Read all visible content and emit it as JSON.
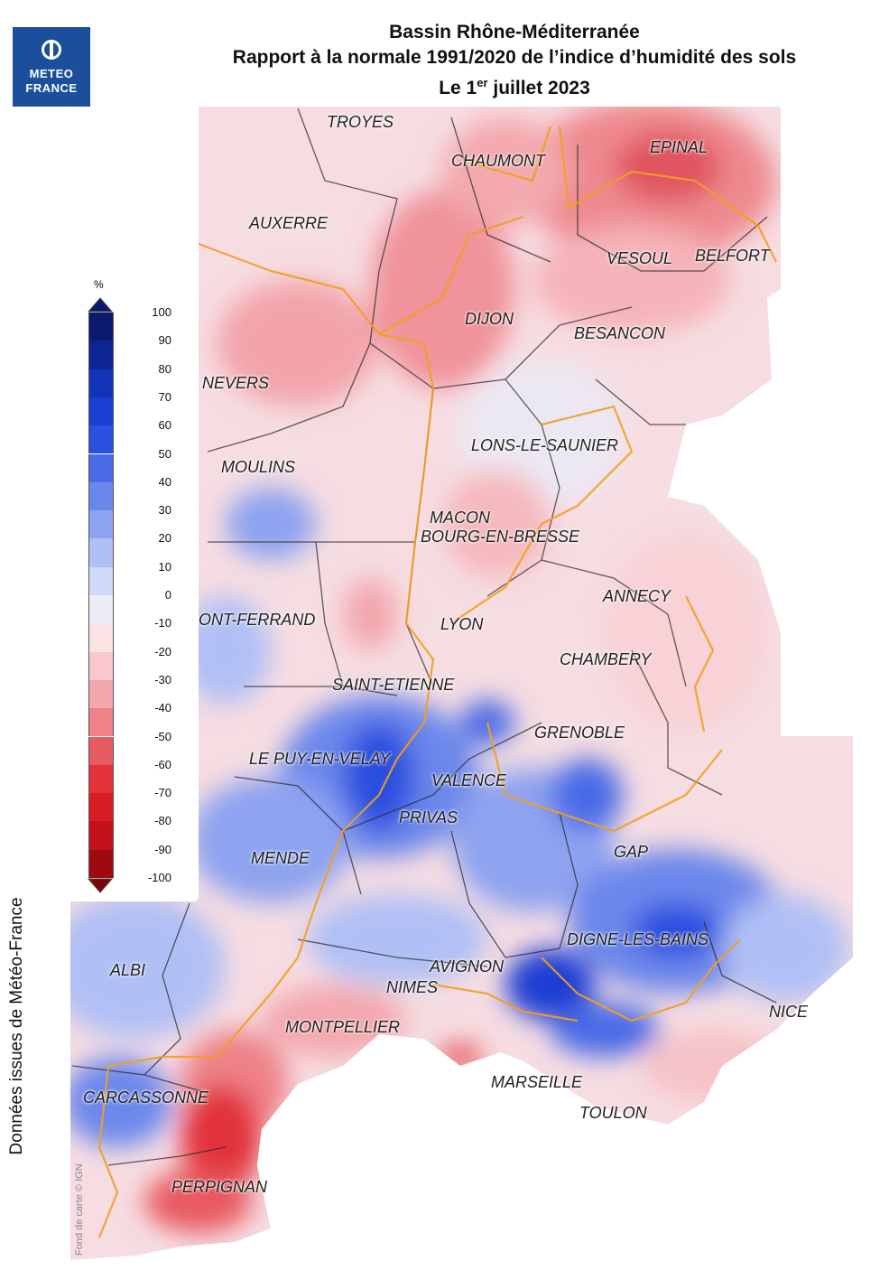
{
  "header": {
    "line1": "Bassin Rhône-Méditerranée",
    "line2": "Rapport à la normale 1991/2020 de l’indice d’humidité des sols",
    "line3_prefix": "Le 1",
    "line3_sup": "er",
    "line3_suffix": " juillet 2023"
  },
  "logo": {
    "line1": "METEO",
    "line2": "FRANCE"
  },
  "legend": {
    "unit": "%",
    "ticks": [
      "100",
      "90",
      "80",
      "70",
      "60",
      "50",
      "40",
      "30",
      "20",
      "10",
      "0",
      "-10",
      "-20",
      "-30",
      "-40",
      "-50",
      "-60",
      "-70",
      "-80",
      "-90",
      "-100"
    ],
    "colors": [
      "#0b1a6e",
      "#0d2494",
      "#1232b8",
      "#1a3ed3",
      "#2a50e0",
      "#4a6ae6",
      "#6c87eb",
      "#8ea3f0",
      "#b0bff5",
      "#d0d9fa",
      "#ecebf6",
      "#fbe3e6",
      "#f8c8cc",
      "#f3a7ad",
      "#ee8288",
      "#e85a61",
      "#e2333b",
      "#d91d24",
      "#c4121a",
      "#9e0a10"
    ]
  },
  "cities": {
    "troyes": "TROYES",
    "chaumont": "CHAUMONT",
    "epinal": "EPINAL",
    "auxerre": "AUXERRE",
    "vesoul": "VESOUL",
    "belfort": "BELFORT",
    "dijon": "DIJON",
    "besancon": "BESANCON",
    "nevers": "NEVERS",
    "lons": "LONS-LE-SAUNIER",
    "moulins": "MOULINS",
    "macon": "MACON",
    "bourg": "BOURG-EN-BRESSE",
    "annecy": "ANNECY",
    "clermont": "ONT-FERRAND",
    "lyon": "LYON",
    "chambery": "CHAMBERY",
    "st_etienne": "SAINT-ETIENNE",
    "grenoble": "GRENOBLE",
    "le_puy": "LE PUY-EN-VELAY",
    "valence": "VALENCE",
    "privas": "PRIVAS",
    "gap": "GAP",
    "mende": "MENDE",
    "digne": "DIGNE-LES-BAINS",
    "albi": "ALBI",
    "avignon": "AVIGNON",
    "nimes": "NIMES",
    "nice": "NICE",
    "montpellier": "MONTPELLIER",
    "marseille": "MARSEILLE",
    "carcassonne": "CARCASSONNE",
    "toulon": "TOULON",
    "perpignan": "PERPIGNAN"
  },
  "credit": "Données issues de Météo-France",
  "fond": "Fond de carte © IGN"
}
